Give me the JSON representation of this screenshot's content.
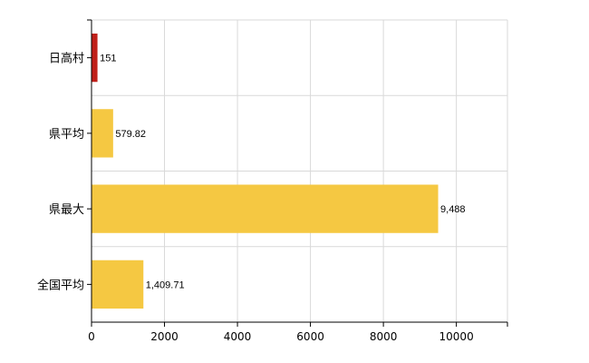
{
  "chart_data": {
    "type": "bar",
    "orientation": "horizontal",
    "categories": [
      "日高村",
      "県平均",
      "県最大",
      "全国平均"
    ],
    "values": [
      151,
      579.82,
      9488,
      1409.71
    ],
    "value_labels": [
      "151",
      "579.82",
      "9,488",
      "1,409.71"
    ],
    "bar_colors": [
      "#c0201a",
      "#f5c842",
      "#f5c842",
      "#f5c842"
    ],
    "xlim": [
      0,
      11400
    ],
    "xticks": [
      0,
      2000,
      4000,
      6000,
      8000,
      10000
    ],
    "grid": true,
    "title": "",
    "xlabel": "",
    "ylabel": ""
  }
}
